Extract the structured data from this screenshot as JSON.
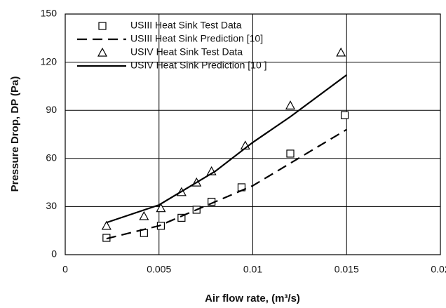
{
  "chart_data": {
    "type": "line",
    "xlabel": "Air flow rate, (m³/s)",
    "ylabel": "Pressure Drop, DP (Pa)",
    "xlim": [
      0,
      0.02
    ],
    "xticks": [
      0,
      0.005,
      0.01,
      0.015,
      0.02
    ],
    "ylim": [
      0,
      150
    ],
    "yticks": [
      0,
      30,
      60,
      90,
      120,
      150
    ],
    "grid": true,
    "legend": "upper left",
    "series": [
      {
        "name": "USIII Heat Sink Test Data",
        "color": "#000000",
        "style": "square",
        "x": [
          0.0022,
          0.0042,
          0.0051,
          0.0062,
          0.007,
          0.0078,
          0.0094,
          0.012,
          0.0149
        ],
        "values": [
          10.5,
          13.5,
          18,
          23,
          28,
          33,
          42,
          63,
          87
        ]
      },
      {
        "name": "USIII Heat Sink Prediction [10]",
        "color": "#000000",
        "style": "dashed",
        "x": [
          0.0022,
          0.005,
          0.008,
          0.01,
          0.012,
          0.015
        ],
        "values": [
          10,
          18,
          33,
          43,
          57,
          78
        ]
      },
      {
        "name": "USIV Heat Sink Test Data",
        "color": "#000000",
        "style": "triangle",
        "x": [
          0.0022,
          0.0042,
          0.0051,
          0.0062,
          0.007,
          0.0078,
          0.0096,
          0.012,
          0.0147
        ],
        "values": [
          18,
          24,
          29,
          39,
          45,
          52,
          68,
          93,
          126
        ]
      },
      {
        "name": "USIV Heat Sink Prediction [10 ]",
        "color": "#000000",
        "style": "solid",
        "x": [
          0.0022,
          0.005,
          0.008,
          0.01,
          0.012,
          0.015
        ],
        "values": [
          20,
          31,
          52,
          70,
          86,
          112
        ]
      }
    ]
  }
}
